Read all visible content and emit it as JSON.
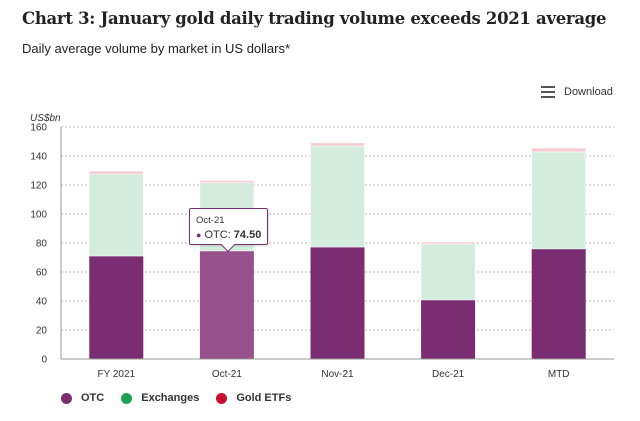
{
  "header": {
    "title": "Chart 3: January gold daily trading volume exceeds 2021 average",
    "subtitle": "Daily average volume by market in US dollars*"
  },
  "toolbar": {
    "download_label": "Download",
    "download_icon": "hamburger-menu-icon"
  },
  "tooltip": {
    "category": "Oct-21",
    "series": "OTC",
    "label": "OTC: ",
    "value": "74.50"
  },
  "legend": [
    {
      "name": "OTC",
      "color": "#7B2D72"
    },
    {
      "name": "Exchanges",
      "color": "#1FA055"
    },
    {
      "name": "Gold ETFs",
      "color": "#C8102E"
    }
  ],
  "chart_data": {
    "type": "bar",
    "stacked": true,
    "title": "Chart 3: January gold daily trading volume exceeds 2021 average",
    "subtitle": "Daily average volume by market in US dollars*",
    "xlabel": "",
    "ylabel": "US$bn",
    "ylim": [
      0,
      160
    ],
    "yticks": [
      0,
      20,
      40,
      60,
      80,
      100,
      120,
      140,
      160
    ],
    "grid": true,
    "legend_position": "bottom-left",
    "categories": [
      "FY 2021",
      "Oct-21",
      "Nov-21",
      "Dec-21",
      "MTD"
    ],
    "highlighted_category": "Oct-21",
    "series": [
      {
        "name": "OTC",
        "color": "#7B2D72",
        "fill": "#7B2D72",
        "hover_fill": "#96508C",
        "values": [
          71.0,
          74.5,
          77.2,
          40.7,
          75.9
        ]
      },
      {
        "name": "Exchanges",
        "color": "#1FA055",
        "fill": "#D3ECDD",
        "values": [
          56.5,
          47.0,
          69.7,
          38.6,
          66.9
        ]
      },
      {
        "name": "Gold ETFs",
        "color": "#C8102E",
        "fill": "#F5CCD3",
        "values": [
          2.1,
          1.6,
          2.1,
          1.4,
          2.7
        ]
      }
    ]
  }
}
